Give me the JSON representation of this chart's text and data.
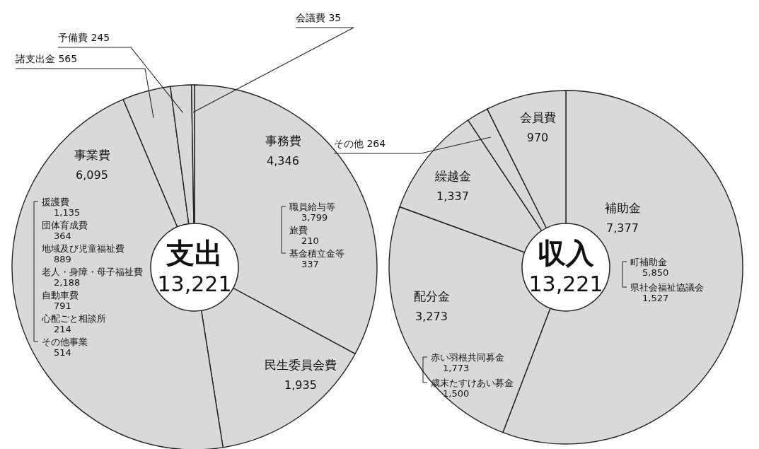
{
  "chart_data": [
    {
      "type": "donut",
      "title": "支出",
      "subtitle": "13,221",
      "categories": [
        "事務費",
        "民生委員会費",
        "事業費",
        "諸支出金",
        "予備費",
        "会議費"
      ],
      "values": [
        4346,
        1935,
        6095,
        565,
        245,
        35
      ],
      "value_labels": [
        "4,346",
        "1,935",
        "6,095",
        "565",
        "245",
        "35"
      ],
      "colors": [
        "#d9d9d9",
        "#d9d9d9",
        "#d9d9d9",
        "#d9d9d9",
        "#d9d9d9",
        "#d9d9d9"
      ],
      "annotations": [
        "職員給与等 3,799",
        "旅費 210",
        "基金積立金等 337",
        "援護費 1,135",
        "団体育成費 364",
        "地域及び児童福祉費 889",
        "老人・身障・母子福祉費 2,188",
        "自動車費 791",
        "心配ごと相談所 214",
        "その他事業 514"
      ]
    },
    {
      "type": "donut",
      "title": "収入",
      "subtitle": "13,221",
      "categories": [
        "補助金",
        "配分金",
        "繰越金",
        "その他",
        "会員費"
      ],
      "values": [
        7377,
        3273,
        1337,
        264,
        970
      ],
      "value_labels": [
        "7,377",
        "3,273",
        "1,337",
        "264",
        "970"
      ],
      "colors": [
        "#d9d9d9",
        "#d9d9d9",
        "#d9d9d9",
        "#d9d9d9",
        "#d9d9d9"
      ],
      "annotations": [
        "町補助金 5,850",
        "県社会福祉協議会 1,527",
        "赤い羽根共同募金 1,773",
        "歳末たすけあい募金 1,500"
      ]
    }
  ]
}
